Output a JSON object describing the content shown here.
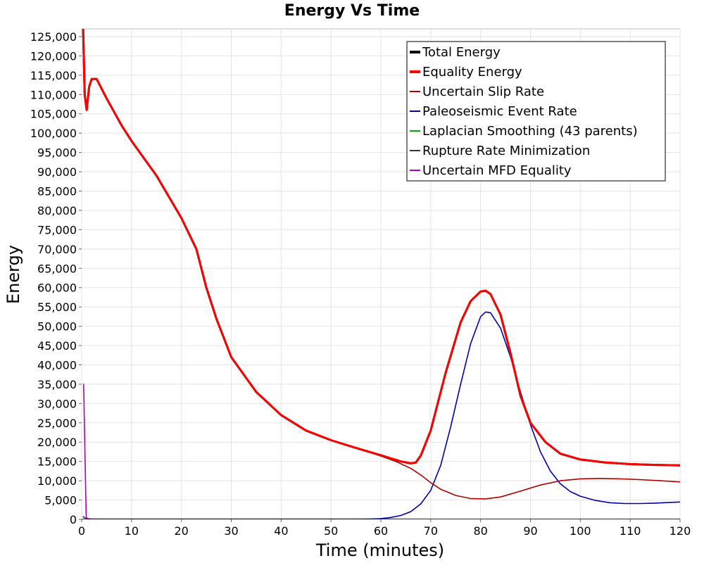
{
  "chart_data": {
    "type": "line",
    "title": "Energy Vs Time",
    "xlabel": "Time (minutes)",
    "ylabel": "Energy",
    "xlim": [
      0,
      120
    ],
    "ylim": [
      0,
      127000
    ],
    "x_ticks": [
      0,
      10,
      20,
      30,
      40,
      50,
      60,
      70,
      80,
      90,
      100,
      110,
      120
    ],
    "y_ticks": [
      0,
      5000,
      10000,
      15000,
      20000,
      25000,
      30000,
      35000,
      40000,
      45000,
      50000,
      55000,
      60000,
      65000,
      70000,
      75000,
      80000,
      85000,
      90000,
      95000,
      100000,
      105000,
      110000,
      115000,
      120000,
      125000
    ],
    "y_tick_labels": [
      "0",
      "5,000",
      "10,000",
      "15,000",
      "20,000",
      "25,000",
      "30,000",
      "35,000",
      "40,000",
      "45,000",
      "50,000",
      "55,000",
      "60,000",
      "65,000",
      "70,000",
      "75,000",
      "80,000",
      "85,000",
      "90,000",
      "95,000",
      "100,000",
      "105,000",
      "110,000",
      "115,000",
      "120,000",
      "125,000"
    ],
    "grid": true,
    "legend_position": "top-right",
    "series": [
      {
        "name": "Total Energy",
        "color": "#000000",
        "width": 3,
        "x": [
          0.3,
          0.6,
          1,
          1.5,
          2,
          3,
          5,
          8,
          10,
          15,
          20,
          23,
          25,
          27,
          30,
          35,
          40,
          45,
          50,
          55,
          60,
          64,
          66,
          67,
          68,
          70,
          73,
          76,
          78,
          80,
          81,
          82,
          84,
          86,
          88,
          90,
          93,
          96,
          100,
          105,
          110,
          115,
          120
        ],
        "y": [
          127000,
          110000,
          106000,
          112000,
          114000,
          114000,
          109000,
          102000,
          98000,
          89000,
          78000,
          70000,
          60000,
          52000,
          42000,
          33000,
          27000,
          23000,
          20500,
          18500,
          16600,
          15000,
          14500,
          14700,
          16500,
          23000,
          38000,
          51000,
          56500,
          59000,
          59200,
          58300,
          53000,
          43000,
          32000,
          25000,
          20000,
          17000,
          15500,
          14700,
          14300,
          14100,
          14000
        ]
      },
      {
        "name": "Equality Energy",
        "color": "#ff0000",
        "width": 3,
        "x": [
          0.3,
          0.6,
          1,
          1.5,
          2,
          3,
          5,
          8,
          10,
          15,
          20,
          23,
          25,
          27,
          30,
          35,
          40,
          45,
          50,
          55,
          60,
          64,
          66,
          67,
          68,
          70,
          73,
          76,
          78,
          80,
          81,
          82,
          84,
          86,
          88,
          90,
          93,
          96,
          100,
          105,
          110,
          115,
          120
        ],
        "y": [
          127000,
          110000,
          106000,
          112000,
          114000,
          114000,
          109000,
          102000,
          98000,
          89000,
          78000,
          70000,
          60000,
          52000,
          42000,
          33000,
          27000,
          23000,
          20500,
          18500,
          16600,
          15000,
          14500,
          14700,
          16500,
          23000,
          38000,
          51000,
          56500,
          59000,
          59200,
          58300,
          53000,
          43000,
          32000,
          25000,
          20000,
          17000,
          15500,
          14700,
          14300,
          14100,
          14000
        ]
      },
      {
        "name": "Uncertain Slip Rate",
        "color": "#b00000",
        "width": 1.6,
        "x": [
          0.3,
          0.6,
          1,
          1.5,
          2,
          3,
          5,
          8,
          10,
          15,
          20,
          23,
          25,
          27,
          30,
          35,
          40,
          45,
          50,
          55,
          60,
          63,
          66,
          68,
          70,
          72,
          75,
          78,
          81,
          84,
          88,
          92,
          96,
          100,
          104,
          108,
          112,
          116,
          120
        ],
        "y": [
          127000,
          110000,
          106000,
          112000,
          114000,
          114000,
          109000,
          102000,
          98000,
          89000,
          78000,
          70000,
          60000,
          52000,
          42000,
          33000,
          27000,
          23000,
          20500,
          18500,
          16400,
          15000,
          13200,
          11500,
          9500,
          7800,
          6200,
          5400,
          5300,
          5800,
          7300,
          8900,
          10000,
          10500,
          10600,
          10500,
          10300,
          10000,
          9700
        ]
      },
      {
        "name": "Paleoseismic Event Rate",
        "color": "#0000b0",
        "width": 1.6,
        "x": [
          0,
          10,
          20,
          30,
          40,
          50,
          55,
          58,
          60,
          62,
          64,
          66,
          68,
          70,
          72,
          74,
          76,
          78,
          80,
          81,
          82,
          84,
          86,
          88,
          90,
          92,
          94,
          96,
          98,
          100,
          103,
          106,
          109,
          112,
          115,
          118,
          120
        ],
        "y": [
          0,
          0,
          0,
          0,
          0,
          0,
          0,
          100,
          200,
          500,
          1000,
          2000,
          4000,
          7500,
          14000,
          24000,
          35000,
          45500,
          52500,
          53700,
          53500,
          49500,
          42000,
          33000,
          24500,
          17500,
          12500,
          9200,
          7200,
          6000,
          4900,
          4300,
          4100,
          4100,
          4200,
          4400,
          4500
        ]
      },
      {
        "name": "Laplacian Smoothing (43 parents)",
        "color": "#00b000",
        "width": 1.6,
        "x": [
          0,
          120
        ],
        "y": [
          0,
          0
        ]
      },
      {
        "name": "Rupture Rate Minimization",
        "color": "#333333",
        "width": 1.6,
        "x": [
          0.3,
          0.6,
          1,
          120
        ],
        "y": [
          700,
          400,
          100,
          50
        ]
      },
      {
        "name": "Uncertain MFD Equality",
        "color": "#b000b0",
        "width": 1.6,
        "x": [
          0.4,
          0.9,
          1.2,
          2,
          5,
          120
        ],
        "y": [
          35000,
          600,
          200,
          80,
          20,
          0
        ]
      }
    ]
  }
}
